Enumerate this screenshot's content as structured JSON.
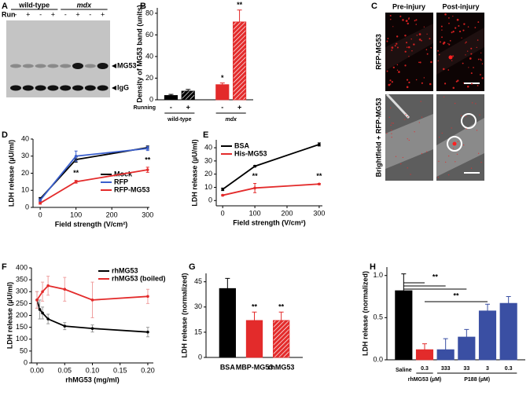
{
  "panel_labels": [
    "A",
    "B",
    "C",
    "D",
    "E",
    "F",
    "G",
    "H"
  ],
  "blot": {
    "groups": [
      "wild-type",
      "mdx"
    ],
    "row_label": "Run",
    "lanes": [
      "-",
      "+",
      "-",
      "+",
      "-",
      "+",
      "-",
      "+"
    ],
    "bands": [
      "MG53",
      "IgG"
    ]
  },
  "micrographs": {
    "columns": [
      "Pre-injury",
      "Post-injury"
    ],
    "rows": [
      "RFP-MG53",
      "Brightfield + RFP-MG53"
    ]
  },
  "chart_data": [
    {
      "type": "bar",
      "ylabel": "Density of MG53 band (units)",
      "categories": [
        "-",
        "+",
        "-",
        "+"
      ],
      "values": [
        4,
        8,
        14,
        72
      ],
      "errors": [
        1,
        1.5,
        1.5,
        11
      ],
      "colors": [
        "#000000",
        "#000000",
        "#e32b2b",
        "#e32b2b"
      ],
      "hatched": [
        false,
        true,
        false,
        true
      ],
      "significance": [
        null,
        null,
        "*",
        "**"
      ],
      "group_label": "Running",
      "groups": [
        {
          "name": "wild-type",
          "members": [
            0,
            1
          ]
        },
        {
          "name": "mdx",
          "members": [
            2,
            3
          ]
        }
      ],
      "ylim": [
        0,
        85
      ],
      "yticks": [
        0,
        20,
        40,
        60,
        80
      ]
    },
    {
      "type": "line",
      "xlabel": "Field strength (V/cm²)",
      "ylabel": "LDH release (µU/ml)",
      "x": [
        0,
        100,
        300
      ],
      "series": [
        {
          "name": "Mock",
          "color": "#000000",
          "values": [
            5,
            28,
            35
          ],
          "errors": [
            0.8,
            1.5,
            1
          ]
        },
        {
          "name": "RFP",
          "color": "#3a5fcd",
          "values": [
            4.2,
            30,
            34.5
          ],
          "errors": [
            0.8,
            3,
            1.2
          ]
        },
        {
          "name": "RFP-MG53",
          "color": "#e32b2b",
          "values": [
            2.5,
            15,
            22
          ],
          "errors": [
            0.6,
            0.8,
            1.5
          ]
        }
      ],
      "significance": [
        null,
        "**",
        "**"
      ],
      "legend": "lower right",
      "xlim": [
        -20,
        305
      ],
      "xticks": [
        0,
        100,
        200,
        300
      ],
      "ylim": [
        0,
        40
      ],
      "yticks": [
        0,
        10,
        20,
        30,
        40
      ]
    },
    {
      "type": "line",
      "xlabel": "Field strength (V/cm²)",
      "ylabel": "LDH release (µU/ml)",
      "x": [
        0,
        100,
        300
      ],
      "series": [
        {
          "name": "BSA",
          "color": "#000000",
          "values": [
            8.5,
            26,
            42.5
          ],
          "errors": [
            1,
            0.6,
            1.2
          ]
        },
        {
          "name": "His-MG53",
          "color": "#e32b2b",
          "values": [
            4,
            9.5,
            12.5
          ],
          "errors": [
            0.5,
            3.5,
            0.5
          ]
        }
      ],
      "significance": [
        null,
        "**",
        "**"
      ],
      "legend": "upper left",
      "xlim": [
        -20,
        310
      ],
      "xticks": [
        0,
        100,
        200,
        300
      ],
      "ylim": [
        -4,
        46
      ],
      "yticks": [
        0,
        10,
        20,
        30,
        40
      ]
    },
    {
      "type": "line",
      "xlabel": "rhMG53 (mg/ml)",
      "ylabel": "LDH release (µU/ml)",
      "series": [
        {
          "name": "rhMG53",
          "color": "#000000",
          "x": [
            0,
            0.005,
            0.01,
            0.02,
            0.05,
            0.1,
            0.2
          ],
          "values": [
            265,
            225,
            210,
            185,
            155,
            145,
            130
          ],
          "errors": [
            35,
            40,
            25,
            20,
            15,
            15,
            20
          ]
        },
        {
          "name": "rhMG53 (boiled)",
          "color": "#e32b2b",
          "x": [
            0,
            0.01,
            0.02,
            0.05,
            0.1,
            0.2
          ],
          "values": [
            265,
            300,
            325,
            310,
            265,
            280
          ],
          "errors": [
            35,
            40,
            40,
            50,
            75,
            30
          ]
        }
      ],
      "legend": "upper right",
      "xlim": [
        -0.01,
        0.21
      ],
      "xticks": [
        {
          "value": 0,
          "label": "0.00"
        },
        0.05,
        {
          "value": 0.1,
          "label": "0.10"
        },
        0.15,
        {
          "value": 0.2,
          "label": "0.20"
        }
      ],
      "ylim": [
        0,
        400
      ],
      "yticks": [
        0,
        50,
        100,
        150,
        200,
        250,
        300,
        350,
        400
      ]
    },
    {
      "type": "bar",
      "ylabel": "LDH release (normalized)",
      "categories": [
        "BSA",
        "MBP-MG53",
        "rhMG53"
      ],
      "values": [
        41,
        22,
        22
      ],
      "errors": [
        6,
        5,
        5
      ],
      "colors": [
        "#000000",
        "#e32b2b",
        "#e32b2b"
      ],
      "hatched": [
        false,
        false,
        true
      ],
      "significance": [
        null,
        "**",
        "**"
      ],
      "ylim": [
        0,
        50
      ],
      "yticks": [
        0,
        15,
        30,
        45
      ]
    },
    {
      "type": "bar",
      "ylabel": "LDH release (normalized)",
      "categories": [
        "Saline",
        "0.3",
        "333",
        "33",
        "3",
        "0.3"
      ],
      "values": [
        0.82,
        0.12,
        0.12,
        0.27,
        0.58,
        0.67
      ],
      "errors": [
        0.2,
        0.07,
        0.13,
        0.09,
        0.08,
        0.08
      ],
      "colors": [
        "#000000",
        "#e32b2b",
        "#3a4fa3",
        "#3a4fa3",
        "#3a4fa3",
        "#3a4fa3"
      ],
      "groups": [
        {
          "name": "rhMG53 (µM)",
          "members": [
            1
          ]
        },
        {
          "name": "P188 (µM)",
          "members": [
            2,
            3,
            4,
            5
          ]
        }
      ],
      "comparisons": [
        {
          "label": "**",
          "bars": [
            0,
            1,
            2,
            3
          ]
        },
        {
          "label": "**",
          "bars": [
            1,
            4
          ]
        }
      ],
      "ylim": [
        0,
        1.1
      ],
      "yticks": [
        {
          "value": 0,
          "label": "0.0"
        },
        0.5,
        {
          "value": 1,
          "label": "1.0"
        }
      ]
    }
  ]
}
